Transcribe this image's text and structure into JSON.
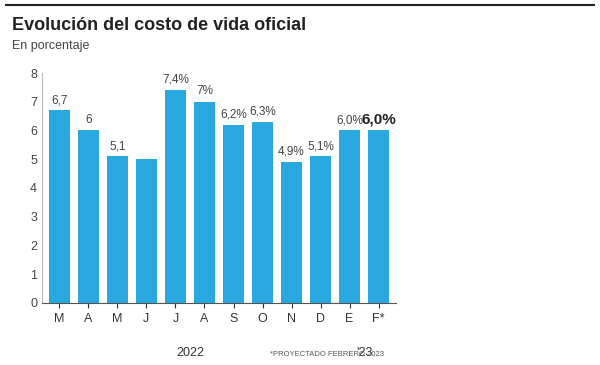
{
  "chart_data": {
    "type": "bar",
    "title": "Evolución del costo de vida oficial",
    "subtitle": "En porcentaje",
    "categories": [
      "M",
      "A",
      "M",
      "J",
      "J",
      "A",
      "S",
      "O",
      "N",
      "D",
      "E",
      "F*"
    ],
    "values": [
      6.7,
      6,
      5.1,
      5.0,
      7.4,
      7,
      6.2,
      6.3,
      4.9,
      5.1,
      6.0,
      6.0
    ],
    "value_labels": [
      "6,7",
      "6",
      "5,1",
      null,
      "7,4%",
      "7%",
      "6,2%",
      "6,3%",
      "4,9%",
      "5,1%",
      "6,0%",
      "6,0%"
    ],
    "data_labels": true,
    "color": "#29a8e0",
    "ylim": [
      0,
      8
    ],
    "yticks": [
      0,
      1,
      2,
      3,
      4,
      5,
      6,
      7,
      8
    ],
    "grid": false,
    "groups": [
      {
        "label": "2022",
        "count": 10
      },
      {
        "label": "'23",
        "count": 2
      }
    ],
    "note": "*PROYECTADO FEBRERO 2023"
  }
}
